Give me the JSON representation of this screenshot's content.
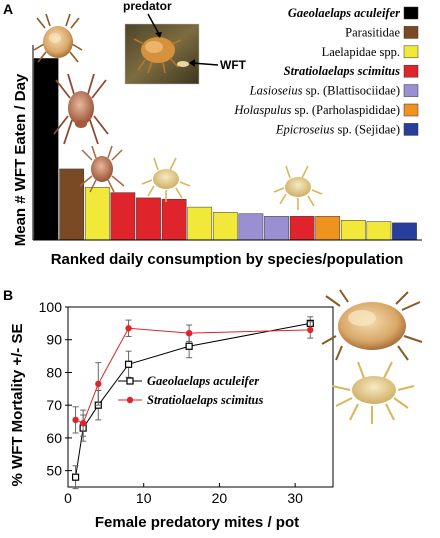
{
  "panel_a_letter": "A",
  "panel_b_letter": "B",
  "photo_callouts": {
    "predator": "predator",
    "wft": "WFT"
  },
  "legend_a": [
    {
      "label": "Gaeolaelaps aculeifer",
      "italic": true,
      "bold": true,
      "color": "#000000"
    },
    {
      "label": "Parasitidae",
      "italic": false,
      "bold": false,
      "color": "#7a4a24"
    },
    {
      "label": "Laelapidae spp.",
      "italic": false,
      "bold": false,
      "color": "#f2e83a"
    },
    {
      "label": "Stratiolaelaps scimitus",
      "italic": true,
      "bold": true,
      "color": "#e0242b"
    },
    {
      "label": "Lasioseius sp. (Blattisociidae)",
      "italic_part": "Lasioseius",
      "rest": " sp. (Blattisociidae)",
      "color": "#9a8fd0"
    },
    {
      "label": "Holaspulus sp. (Parholaspididae)",
      "italic_part": "Holaspulus",
      "rest": " sp. (Parholaspididae)",
      "color": "#f0921e"
    },
    {
      "label": "Epicroseius sp. (Sejidae)",
      "italic_part": "Epicroseius",
      "rest": " sp. (Sejidae)",
      "color": "#283e9c"
    }
  ],
  "chart_data": [
    {
      "type": "bar",
      "panel": "A",
      "ylabel": "Mean # WFT Eaten / Day",
      "xlabel": "Ranked daily consumption by species/population",
      "y_ticks_shown": false,
      "bars": [
        {
          "value": 6.9,
          "group": "Gaeolaelaps aculeifer",
          "color": "#000000"
        },
        {
          "value": 2.7,
          "group": "Parasitidae",
          "color": "#7a4a24"
        },
        {
          "value": 2.0,
          "group": "Laelapidae spp.",
          "color": "#f2e83a"
        },
        {
          "value": 1.8,
          "group": "Stratiolaelaps scimitus",
          "color": "#e0242b"
        },
        {
          "value": 1.6,
          "group": "Stratiolaelaps scimitus",
          "color": "#e0242b"
        },
        {
          "value": 1.55,
          "group": "Stratiolaelaps scimitus",
          "color": "#e0242b"
        },
        {
          "value": 1.25,
          "group": "Laelapidae spp.",
          "color": "#f2e83a"
        },
        {
          "value": 1.05,
          "group": "Laelapidae spp.",
          "color": "#f2e83a"
        },
        {
          "value": 1.0,
          "group": "Lasioseius sp. (Blattisociidae)",
          "color": "#9a8fd0"
        },
        {
          "value": 0.9,
          "group": "Lasioseius sp. (Blattisociidae)",
          "color": "#9a8fd0"
        },
        {
          "value": 0.9,
          "group": "Stratiolaelaps scimitus",
          "color": "#e0242b"
        },
        {
          "value": 0.9,
          "group": "Holaspulus sp. (Parholaspididae)",
          "color": "#f0921e"
        },
        {
          "value": 0.75,
          "group": "Laelapidae spp.",
          "color": "#f2e83a"
        },
        {
          "value": 0.7,
          "group": "Laelapidae spp.",
          "color": "#f2e83a"
        },
        {
          "value": 0.65,
          "group": "Epicroseius sp. (Sejidae)",
          "color": "#283e9c"
        }
      ],
      "ylim": [
        0,
        7.6
      ]
    },
    {
      "type": "line",
      "panel": "B",
      "ylabel": "% WFT Mortality +/- SE",
      "xlabel": "Female predatory mites / pot",
      "xlim": [
        0,
        35
      ],
      "ylim": [
        45,
        100
      ],
      "x_ticks": [
        0,
        10,
        20,
        30
      ],
      "y_ticks": [
        50,
        60,
        70,
        80,
        90,
        100
      ],
      "series": [
        {
          "name": "Gaeolaelaps aculeifer",
          "marker": "open-square",
          "color": "#000000",
          "x": [
            1,
            2,
            4,
            8,
            16,
            32
          ],
          "y": [
            48,
            63,
            70,
            82.5,
            88,
            95
          ],
          "err": [
            3.5,
            4,
            4.5,
            4,
            3.5,
            2
          ]
        },
        {
          "name": "Stratiolaelaps scimitus",
          "marker": "filled-circle",
          "color": "#e0242b",
          "x": [
            1,
            2,
            4,
            8,
            16,
            32
          ],
          "y": [
            65.5,
            64.5,
            76.5,
            93.5,
            92,
            93
          ],
          "err": [
            4,
            4,
            6.5,
            2.5,
            2.5,
            2.5
          ]
        }
      ]
    }
  ]
}
